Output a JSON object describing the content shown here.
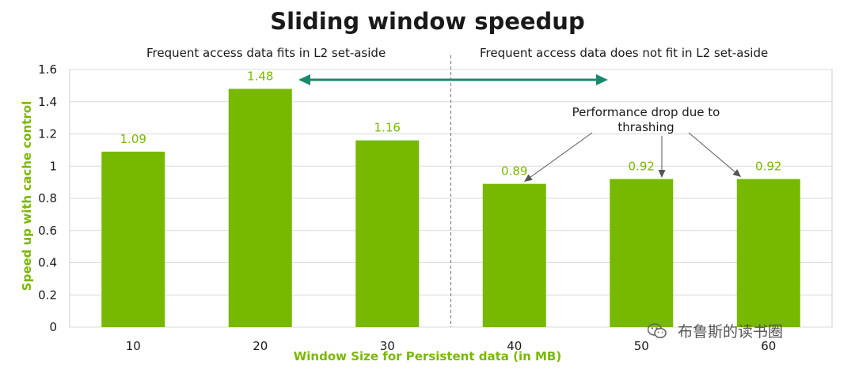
{
  "chart_data": {
    "type": "bar",
    "title": "Sliding window speedup",
    "categories": [
      "10",
      "20",
      "30",
      "40",
      "50",
      "60"
    ],
    "values": [
      1.09,
      1.48,
      1.16,
      0.89,
      0.92,
      0.92
    ],
    "data_labels": [
      "1.09",
      "1.48",
      "1.16",
      "0.89",
      "0.92",
      "0.92"
    ],
    "xlabel": "Window Size for Persistent data (in MB)",
    "ylabel": "Speed up with cache control",
    "ylim": [
      0,
      1.6
    ],
    "yticks": [
      0,
      0.2,
      0.4,
      0.6,
      0.8,
      1,
      1.2,
      1.4,
      1.6
    ],
    "ytick_labels": [
      "0",
      "0.2",
      "0.4",
      "0.6",
      "0.8",
      "1",
      "1.2",
      "1.4",
      "1.6"
    ],
    "grid": true,
    "bar_color": "#76b900",
    "label_color": "#7ab800",
    "arrow_color": "#1a8a6e",
    "regions": [
      {
        "label": "Frequent access data fits in L2 set-aside"
      },
      {
        "label": "Frequent access data does not fit in L2 set-aside"
      }
    ],
    "annotation": {
      "lines": [
        "Performance drop due to",
        "thrashing"
      ]
    }
  },
  "watermark": {
    "text": "布鲁斯的读书圈",
    "icon": "wechat-icon"
  }
}
